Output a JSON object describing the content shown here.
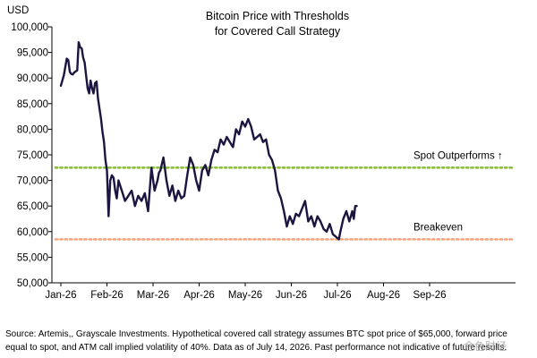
{
  "chart_data": {
    "type": "line",
    "title": [
      "Bitcoin Price with Thresholds",
      "for Covered Call Strategy"
    ],
    "ylabel": "USD",
    "ylim": [
      50000,
      100000
    ],
    "yticks": [
      50000,
      55000,
      60000,
      65000,
      70000,
      75000,
      80000,
      85000,
      90000,
      95000,
      100000
    ],
    "ytick_labels": [
      "50,000",
      "55,000",
      "60,000",
      "65,000",
      "70,000",
      "75,000",
      "80,000",
      "85,000",
      "90,000",
      "95,000",
      "100,000"
    ],
    "xticks": [
      "2026-01-01",
      "2026-02-01",
      "2026-03-01",
      "2026-04-01",
      "2026-05-01",
      "2026-06-01",
      "2026-07-01",
      "2026-08-01",
      "2026-09-01"
    ],
    "xtick_labels": [
      "Jan-26",
      "Feb-26",
      "Mar-26",
      "Apr-26",
      "May-26",
      "Jun-26",
      "Jul-26",
      "Aug-26",
      "Sep-26"
    ],
    "xlim": [
      "2026-01-01",
      "2026-10-01"
    ],
    "grid": false,
    "series": [
      {
        "color": "#1b1540",
        "x": [
          "2026-01-01",
          "2026-01-03",
          "2026-01-05",
          "2026-01-06",
          "2026-01-07",
          "2026-01-08",
          "2026-01-09",
          "2026-01-10",
          "2026-01-12",
          "2026-01-13",
          "2026-01-14",
          "2026-01-15",
          "2026-01-16",
          "2026-01-17",
          "2026-01-18",
          "2026-01-19",
          "2026-01-20",
          "2026-01-21",
          "2026-01-22",
          "2026-01-23",
          "2026-01-24",
          "2026-01-25",
          "2026-01-26",
          "2026-01-27",
          "2026-01-28",
          "2026-01-29",
          "2026-01-30",
          "2026-01-31",
          "2026-02-01",
          "2026-02-02",
          "2026-02-03",
          "2026-02-04",
          "2026-02-05",
          "2026-02-06",
          "2026-02-07",
          "2026-02-08",
          "2026-02-10",
          "2026-02-12",
          "2026-02-14",
          "2026-02-16",
          "2026-02-18",
          "2026-02-20",
          "2026-02-22",
          "2026-02-24",
          "2026-02-26",
          "2026-02-28",
          "2026-03-02",
          "2026-03-04",
          "2026-03-05",
          "2026-03-06",
          "2026-03-08",
          "2026-03-10",
          "2026-03-12",
          "2026-03-14",
          "2026-03-16",
          "2026-03-18",
          "2026-03-20",
          "2026-03-22",
          "2026-03-24",
          "2026-03-26",
          "2026-03-28",
          "2026-03-30",
          "2026-04-01",
          "2026-04-03",
          "2026-04-05",
          "2026-04-07",
          "2026-04-09",
          "2026-04-11",
          "2026-04-13",
          "2026-04-15",
          "2026-04-17",
          "2026-04-19",
          "2026-04-21",
          "2026-04-23",
          "2026-04-25",
          "2026-04-27",
          "2026-04-29",
          "2026-05-01",
          "2026-05-03",
          "2026-05-05",
          "2026-05-07",
          "2026-05-09",
          "2026-05-11",
          "2026-05-13",
          "2026-05-15",
          "2026-05-17",
          "2026-05-19",
          "2026-05-21",
          "2026-05-23",
          "2026-05-25",
          "2026-05-27",
          "2026-05-29",
          "2026-05-31",
          "2026-06-02",
          "2026-06-04",
          "2026-06-06",
          "2026-06-08",
          "2026-06-10",
          "2026-06-12",
          "2026-06-14",
          "2026-06-16",
          "2026-06-18",
          "2026-06-20",
          "2026-06-22",
          "2026-06-24",
          "2026-06-26",
          "2026-06-28",
          "2026-06-30",
          "2026-07-02",
          "2026-07-03",
          "2026-07-05",
          "2026-07-07",
          "2026-07-09",
          "2026-07-11",
          "2026-07-12",
          "2026-07-13",
          "2026-07-14"
        ],
        "y": [
          88500,
          90500,
          93800,
          93500,
          91200,
          90800,
          90700,
          91100,
          91500,
          97000,
          96000,
          95800,
          94000,
          93000,
          90500,
          88000,
          87000,
          89500,
          88000,
          87000,
          89000,
          89300,
          86000,
          84000,
          82000,
          79500,
          77500,
          74000,
          72000,
          63000,
          70000,
          71000,
          70500,
          68000,
          66500,
          70000,
          68000,
          66000,
          67000,
          68000,
          65000,
          67000,
          66000,
          67500,
          64000,
          72500,
          68000,
          70000,
          71500,
          72000,
          74500,
          70000,
          67000,
          69000,
          66000,
          68000,
          66500,
          67000,
          71000,
          74500,
          73000,
          70000,
          68000,
          72000,
          73000,
          71000,
          74000,
          76000,
          75500,
          78000,
          77000,
          78500,
          77500,
          76500,
          80000,
          79000,
          81500,
          80500,
          82000,
          80500,
          78000,
          78500,
          79000,
          77500,
          78000,
          75000,
          74000,
          72000,
          68000,
          66500,
          64000,
          61000,
          63000,
          61500,
          63500,
          63000,
          64500,
          66000,
          62000,
          63000,
          61000,
          63000,
          62000,
          60500,
          60000,
          61500,
          59500,
          59000,
          58500,
          60000,
          62500,
          64000,
          62000,
          64000,
          62500,
          65000,
          65000
        ]
      }
    ],
    "thresholds": [
      {
        "label": "Spot Outperforms ↑",
        "value": 72500,
        "color": "#8dbd3a"
      },
      {
        "label": "Breakeven",
        "value": 58500,
        "color": "#f4a480"
      }
    ]
  },
  "footnote": [
    "Source: Artemis,, Grayscale Investments. Hypothetical covered call strategy assumes BTC spot price of $65,000, forward price",
    "equal to spot, and ATM call implied volatility of 40%. Data as of July 14, 2026. Past performance not indicative of future results."
  ],
  "watermark": "金色财经",
  "colors": {
    "line": "#1b1540",
    "axis": "#000000",
    "spot_outperforms": "#8dbd3a",
    "breakeven": "#f4a480"
  }
}
